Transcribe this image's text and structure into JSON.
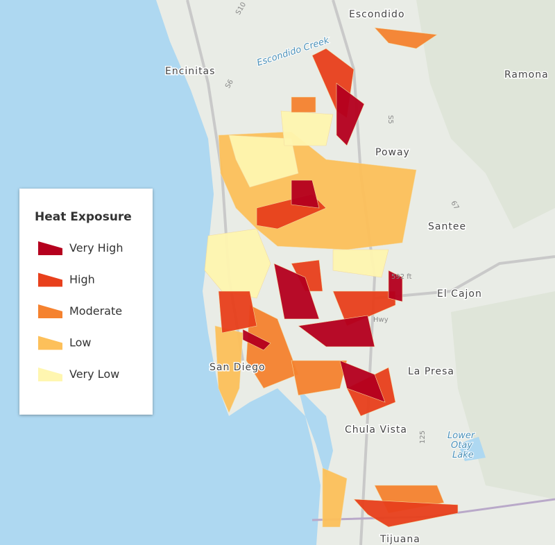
{
  "legend": {
    "title": "Heat Exposure",
    "items": [
      {
        "label": "Very High",
        "color": "#b5001e"
      },
      {
        "label": "High",
        "color": "#e8401c"
      },
      {
        "label": "Moderate",
        "color": "#f5822f"
      },
      {
        "label": "Low",
        "color": "#fdc05a"
      },
      {
        "label": "Very Low",
        "color": "#fff6b0"
      }
    ]
  },
  "places": [
    {
      "label": "Escondido"
    },
    {
      "label": "Escondido Creek"
    },
    {
      "label": "Encinitas"
    },
    {
      "label": "Ramona"
    },
    {
      "label": "Poway"
    },
    {
      "label": "Santee"
    },
    {
      "label": "El Cajon"
    },
    {
      "label": "La Presa"
    },
    {
      "label": "Chula Vista"
    },
    {
      "label": "Lower"
    },
    {
      "label": "Otay"
    },
    {
      "label": "Lake"
    },
    {
      "label": "Tijuana"
    },
    {
      "label": "San Diego"
    },
    {
      "label": "592 ft"
    },
    {
      "label": "Hwy"
    },
    {
      "label": "S10"
    },
    {
      "label": "S6"
    },
    {
      "label": "S5"
    },
    {
      "label": "67"
    },
    {
      "label": "125"
    }
  ]
}
